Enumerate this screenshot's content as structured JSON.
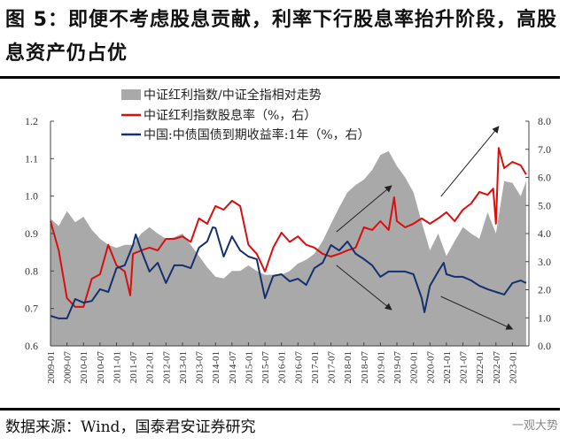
{
  "title": "图 5：即便不考虑股息贡献，利率下行股息率抬升阶段，高股息资产仍占优",
  "source": "数据来源：Wind，国泰君安证券研究",
  "watermark": "一观大势",
  "colors": {
    "area": "#a9a9a9",
    "red": "#d90f0f",
    "blue": "#14306e",
    "arrow": "#222222"
  },
  "chart_data": {
    "type": "line",
    "title": "",
    "legend_position": "top-center",
    "legend": [
      "中证红利指数/中证全指相对走势",
      "中证红利指数股息率（%，右）",
      "中国:中债国债到期收益率:1年（%，右）"
    ],
    "left_axis": {
      "ylim": [
        0.6,
        1.2
      ],
      "ticks": [
        "0.6",
        "0.7",
        "0.8",
        "0.9",
        "1.0",
        "1.1",
        "1.2"
      ]
    },
    "right_axis": {
      "ylim": [
        0.0,
        8.0
      ],
      "ticks": [
        "0.0",
        "1.0",
        "2.0",
        "3.0",
        "4.0",
        "5.0",
        "6.0",
        "7.0",
        "8.0"
      ]
    },
    "x_range": [
      "2009-01",
      "2023-07"
    ],
    "x_ticks": [
      "2009-01",
      "2009-07",
      "2010-01",
      "2010-07",
      "2011-01",
      "2011-07",
      "2012-01",
      "2012-07",
      "2013-01",
      "2013-07",
      "2014-01",
      "2014-07",
      "2015-01",
      "2015-07",
      "2016-01",
      "2016-07",
      "2017-01",
      "2017-07",
      "2018-01",
      "2018-07",
      "2019-01",
      "2019-07",
      "2020-01",
      "2020-07",
      "2021-01",
      "2021-07",
      "2022-01",
      "2022-07",
      "2023-01"
    ],
    "series": [
      {
        "name": "中证红利指数/中证全指相对走势",
        "kind": "area",
        "axis": "left",
        "x": [
          "2009-01",
          "2009-04",
          "2009-07",
          "2009-10",
          "2010-01",
          "2010-04",
          "2010-07",
          "2010-10",
          "2011-01",
          "2011-04",
          "2011-07",
          "2011-10",
          "2012-01",
          "2012-04",
          "2012-07",
          "2012-10",
          "2013-01",
          "2013-04",
          "2013-07",
          "2013-10",
          "2014-01",
          "2014-04",
          "2014-07",
          "2014-10",
          "2015-01",
          "2015-04",
          "2015-07",
          "2015-10",
          "2016-01",
          "2016-04",
          "2016-07",
          "2016-10",
          "2017-01",
          "2017-04",
          "2017-07",
          "2017-10",
          "2018-01",
          "2018-04",
          "2018-07",
          "2018-10",
          "2019-01",
          "2019-04",
          "2019-07",
          "2019-10",
          "2020-01",
          "2020-04",
          "2020-07",
          "2020-10",
          "2021-01",
          "2021-04",
          "2021-07",
          "2021-10",
          "2022-01",
          "2022-04",
          "2022-07",
          "2022-10",
          "2023-01",
          "2023-04",
          "2023-06"
        ],
        "values": [
          0.94,
          0.92,
          0.96,
          0.93,
          0.945,
          0.91,
          0.886,
          0.87,
          0.862,
          0.87,
          0.87,
          0.9,
          0.917,
          0.9,
          0.886,
          0.89,
          0.9,
          0.87,
          0.84,
          0.81,
          0.785,
          0.78,
          0.8,
          0.8,
          0.815,
          0.8,
          0.79,
          0.79,
          0.79,
          0.8,
          0.82,
          0.83,
          0.846,
          0.88,
          0.926,
          0.97,
          1.01,
          1.03,
          1.044,
          1.07,
          1.11,
          1.12,
          1.08,
          1.05,
          1.01,
          0.93,
          0.855,
          0.9,
          0.84,
          0.88,
          0.917,
          0.9,
          0.886,
          0.957,
          0.9,
          1.04,
          1.035,
          1.0,
          1.04
        ]
      },
      {
        "name": "中证红利指数股息率（%，右）",
        "kind": "line",
        "axis": "right",
        "x": [
          "2009-01",
          "2009-04",
          "2009-07",
          "2009-10",
          "2010-01",
          "2010-04",
          "2010-07",
          "2010-10",
          "2011-01",
          "2011-04",
          "2011-06",
          "2011-07",
          "2011-10",
          "2012-01",
          "2012-04",
          "2012-07",
          "2012-10",
          "2013-01",
          "2013-04",
          "2013-07",
          "2013-10",
          "2014-01",
          "2014-04",
          "2014-07",
          "2014-10",
          "2015-01",
          "2015-04",
          "2015-07",
          "2015-10",
          "2016-01",
          "2016-04",
          "2016-07",
          "2016-10",
          "2017-01",
          "2017-04",
          "2017-07",
          "2017-10",
          "2018-01",
          "2018-04",
          "2018-07",
          "2018-10",
          "2019-01",
          "2019-04",
          "2019-06",
          "2019-07",
          "2019-10",
          "2020-01",
          "2020-04",
          "2020-07",
          "2020-10",
          "2021-01",
          "2021-04",
          "2021-07",
          "2021-10",
          "2022-01",
          "2022-04",
          "2022-06",
          "2022-07",
          "2022-08",
          "2022-10",
          "2023-01",
          "2023-04",
          "2023-06"
        ],
        "values": [
          4.44,
          3.4,
          1.7,
          1.39,
          1.39,
          2.39,
          2.55,
          3.6,
          2.87,
          2.65,
          1.8,
          3.28,
          3.4,
          3.5,
          3.4,
          3.81,
          3.81,
          3.9,
          3.7,
          4.54,
          4.35,
          4.98,
          4.85,
          5.17,
          4.98,
          3.6,
          3.28,
          2.65,
          3.5,
          4.03,
          3.7,
          3.9,
          3.6,
          3.5,
          3.28,
          3.18,
          3.28,
          3.4,
          3.5,
          4.22,
          4.13,
          4.44,
          4.13,
          5.29,
          4.44,
          4.22,
          4.35,
          4.54,
          4.35,
          4.54,
          4.76,
          4.44,
          4.85,
          5.07,
          5.48,
          5.38,
          5.6,
          4.35,
          7.05,
          6.33,
          6.55,
          6.43,
          6.1
        ]
      },
      {
        "name": "中国:中债国债到期收益率:1年（%，右）",
        "kind": "line",
        "axis": "right",
        "x": [
          "2009-01",
          "2009-04",
          "2009-07",
          "2009-10",
          "2010-01",
          "2010-04",
          "2010-07",
          "2010-10",
          "2011-01",
          "2011-04",
          "2011-07",
          "2011-08",
          "2011-10",
          "2012-01",
          "2012-04",
          "2012-07",
          "2012-10",
          "2013-01",
          "2013-04",
          "2013-07",
          "2013-10",
          "2013-12",
          "2014-01",
          "2014-04",
          "2014-07",
          "2014-10",
          "2015-01",
          "2015-04",
          "2015-07",
          "2015-10",
          "2016-01",
          "2016-04",
          "2016-07",
          "2016-10",
          "2017-01",
          "2017-04",
          "2017-07",
          "2017-10",
          "2018-01",
          "2018-04",
          "2018-07",
          "2018-10",
          "2019-01",
          "2019-04",
          "2019-07",
          "2019-10",
          "2020-01",
          "2020-04",
          "2020-05",
          "2020-07",
          "2020-10",
          "2020-12",
          "2021-01",
          "2021-04",
          "2021-07",
          "2021-10",
          "2022-01",
          "2022-04",
          "2022-07",
          "2022-10",
          "2023-01",
          "2023-04",
          "2023-06"
        ],
        "values": [
          1.07,
          0.98,
          0.98,
          1.67,
          1.54,
          1.6,
          2.02,
          1.92,
          2.77,
          2.87,
          3.59,
          3.97,
          3.4,
          2.65,
          2.96,
          2.24,
          2.87,
          2.87,
          2.77,
          3.5,
          3.72,
          4.22,
          4.2,
          3.18,
          3.9,
          3.4,
          3.18,
          3.09,
          1.7,
          2.49,
          2.55,
          2.3,
          2.39,
          2.17,
          2.77,
          2.96,
          3.59,
          3.4,
          3.72,
          3.28,
          3.09,
          2.87,
          2.46,
          2.65,
          2.65,
          2.65,
          2.55,
          1.7,
          1.2,
          2.14,
          2.65,
          2.96,
          2.55,
          2.46,
          2.46,
          2.33,
          2.14,
          2.02,
          1.92,
          1.83,
          2.24,
          2.33,
          2.24
        ]
      }
    ],
    "annotations": [
      {
        "type": "arrow",
        "from": [
          "2017-09",
          4.06
        ],
        "to": [
          "2019-05",
          5.7
        ],
        "axis": "right"
      },
      {
        "type": "arrow",
        "from": [
          "2017-09",
          2.87
        ],
        "to": [
          "2019-05",
          1.29
        ],
        "axis": "right"
      },
      {
        "type": "arrow",
        "from": [
          "2020-11",
          5.32
        ],
        "to": [
          "2022-08",
          7.81
        ],
        "axis": "right"
      },
      {
        "type": "arrow",
        "from": [
          "2020-11",
          1.76
        ],
        "to": [
          "2023-01",
          0.6
        ],
        "axis": "right"
      }
    ]
  }
}
